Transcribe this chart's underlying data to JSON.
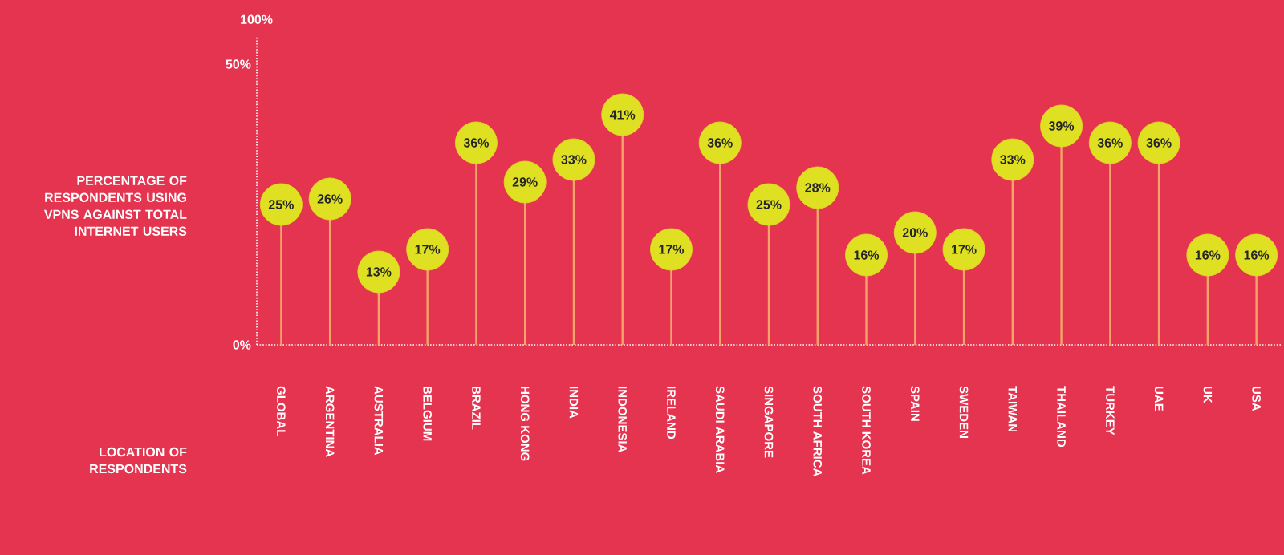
{
  "chart_data": {
    "type": "lollipop",
    "ylabel": "PERCENTAGE OF RESPONDENTS USING VPNS AGAINST TOTAL INTERNET USERS",
    "xlabel": "LOCATION OF RESPONDENTS",
    "categories": [
      "GLOBAL",
      "ARGENTINA",
      "AUSTRALIA",
      "BELGIUM",
      "BRAZIL",
      "HONG KONG",
      "INDIA",
      "INDONESIA",
      "IRELAND",
      "SAUDI ARABIA",
      "SINGAPORE",
      "SOUTH AFRICA",
      "SOUTH KOREA",
      "SPAIN",
      "SWEDEN",
      "TAIWAN",
      "THAILAND",
      "TURKEY",
      "UAE",
      "UK",
      "USA"
    ],
    "values": [
      25,
      26,
      13,
      17,
      36,
      29,
      33,
      41,
      17,
      36,
      25,
      28,
      16,
      20,
      17,
      33,
      39,
      36,
      36,
      16,
      16
    ],
    "value_labels": [
      "25%",
      "26%",
      "13%",
      "17%",
      "36%",
      "29%",
      "33%",
      "41%",
      "17%",
      "36%",
      "25%",
      "28%",
      "16%",
      "20%",
      "17%",
      "33%",
      "39%",
      "36%",
      "36%",
      "16%",
      "16%"
    ],
    "color": "#dfe022",
    "marker": "circle",
    "ylim": [
      0,
      55
    ],
    "yticks": [
      {
        "value": 0,
        "label": "0%"
      },
      {
        "value": 50,
        "label": "50%"
      }
    ],
    "annotations": [
      "100%"
    ]
  }
}
